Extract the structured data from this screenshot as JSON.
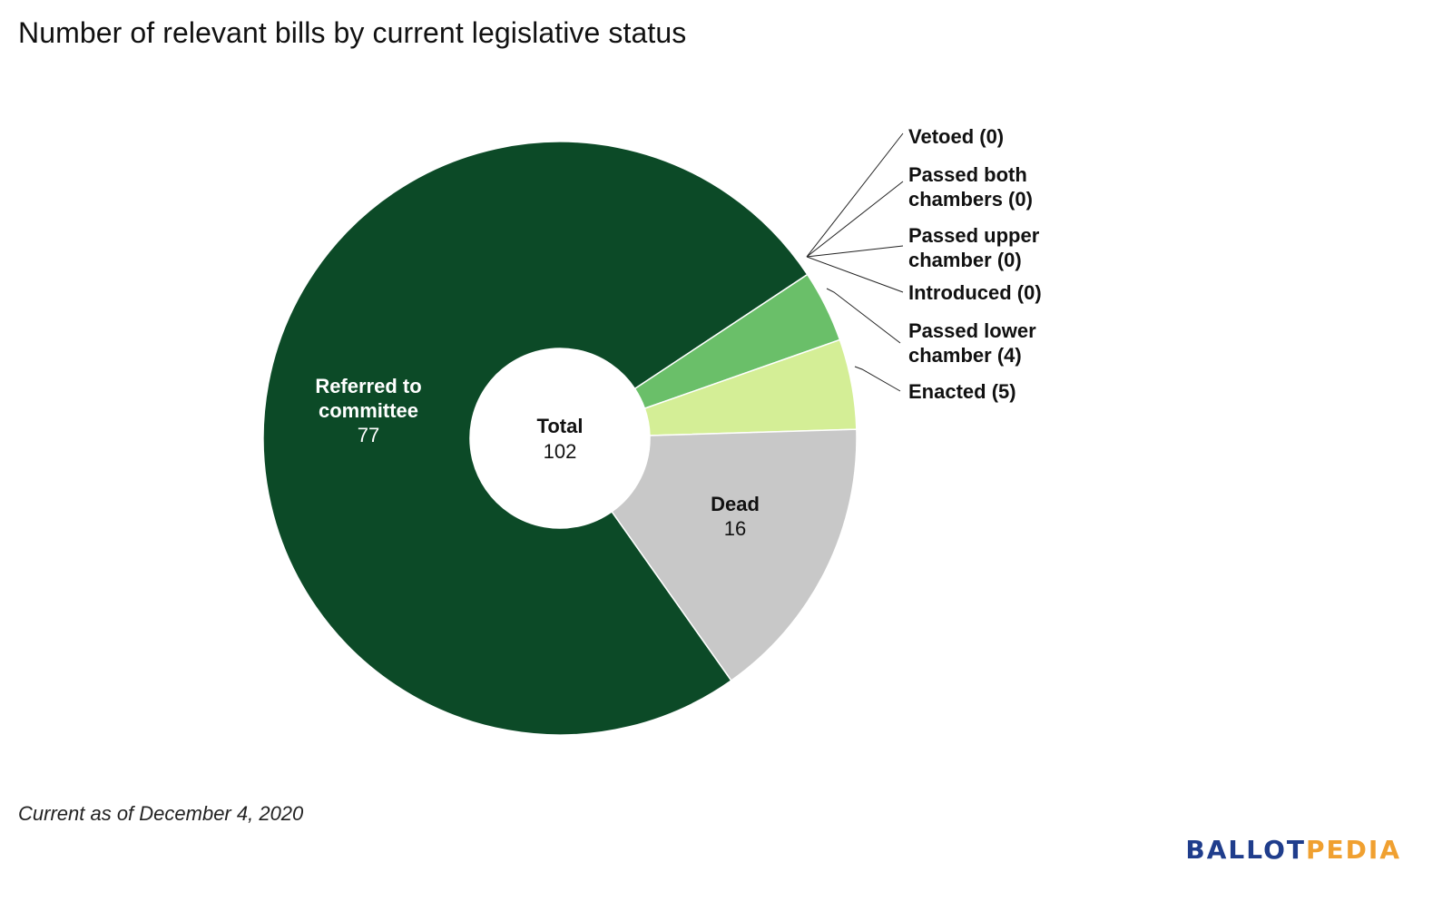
{
  "title": "Number of relevant bills by current legislative status",
  "footnote": "Current as of December 4, 2020",
  "logo": {
    "part1": "BALLOT",
    "part2": "PEDIA",
    "color1": "#1f3d8c",
    "color2": "#f0a030"
  },
  "chart_data": {
    "type": "pie",
    "variant": "donut",
    "title": "Number of relevant bills by current legislative status",
    "center_label": {
      "title": "Total",
      "value": "102"
    },
    "slices": [
      {
        "name": "Referred to committee",
        "value": 77,
        "color": "#0c4a27",
        "label_lines": [
          "Referred to",
          "committee"
        ],
        "label_value": "77",
        "label_color": "#ffffff",
        "label_mode": "inside"
      },
      {
        "name": "Passed lower chamber",
        "value": 4,
        "color": "#6abf69",
        "label_lines": [
          "Passed lower",
          "chamber (4)"
        ],
        "label_mode": "outside"
      },
      {
        "name": "Enacted",
        "value": 5,
        "color": "#d4ee96",
        "label_lines": [
          "Enacted (5)"
        ],
        "label_mode": "outside"
      },
      {
        "name": "Dead",
        "value": 16,
        "color": "#c8c8c8",
        "label_lines": [
          "Dead"
        ],
        "label_value": "16",
        "label_color": "#111111",
        "label_mode": "inside"
      }
    ],
    "zero_slices": [
      {
        "name": "Vetoed",
        "value": 0,
        "label_lines": [
          "Vetoed (0)"
        ]
      },
      {
        "name": "Passed both chambers",
        "value": 0,
        "label_lines": [
          "Passed both",
          "chambers (0)"
        ]
      },
      {
        "name": "Passed upper chamber",
        "value": 0,
        "label_lines": [
          "Passed upper",
          "chamber (0)"
        ]
      },
      {
        "name": "Introduced",
        "value": 0,
        "label_lines": [
          "Introduced (0)"
        ]
      }
    ]
  }
}
